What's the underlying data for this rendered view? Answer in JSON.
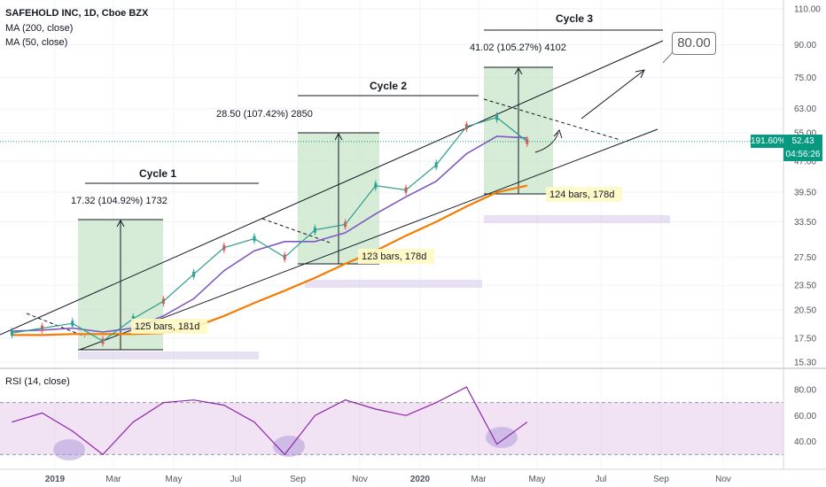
{
  "header": {
    "symbol": "SAFEHOLD INC, 1D, Cboe BZX",
    "ma200": "MA (200, close)",
    "ma50": "MA (50, close)"
  },
  "price_labels": {
    "price_tag": "52.43",
    "pct_tag": "191.60%",
    "timer_tag": "04:56:26"
  },
  "callout": "80.00",
  "colors": {
    "price_up": "#26a69a",
    "price_down": "#ef5350",
    "ma200": "#f57c00",
    "ma50": "#7e57c2",
    "rsi_line": "#8e24aa",
    "rsi_band": "#e1bee7",
    "zone_green": "#c8e6c9",
    "last_price": "#089981"
  },
  "chart_data": [
    {
      "type": "line",
      "title": "SAFEHOLD INC, 1D, Cboe BZX",
      "y_axis": {
        "scale": "log",
        "ticks": [
          "110.00",
          "90.00",
          "75.00",
          "63.00",
          "55.00",
          "47.00",
          "39.50",
          "33.50",
          "27.50",
          "23.50",
          "20.50",
          "17.50",
          "15.30"
        ]
      },
      "x_axis": {
        "ticks": [
          "2019",
          "Mar",
          "May",
          "Jul",
          "Sep",
          "Nov",
          "2020",
          "Mar",
          "May",
          "Jul",
          "Sep",
          "Nov"
        ]
      },
      "x": [
        "2018-11",
        "2018-12",
        "2019-01",
        "2019-02",
        "2019-03",
        "2019-04",
        "2019-05",
        "2019-06",
        "2019-07",
        "2019-08",
        "2019-09",
        "2019-10",
        "2019-11",
        "2019-12",
        "2020-01",
        "2020-02",
        "2020-03",
        "2020-04"
      ],
      "series": [
        {
          "name": "Price",
          "values": [
            18.0,
            18.5,
            19.0,
            17.2,
            19.5,
            21.5,
            25.0,
            29.0,
            30.5,
            27.5,
            32.0,
            33.0,
            41.0,
            40.0,
            46.0,
            57.0,
            60.0,
            52.43
          ]
        },
        {
          "name": "MA (50, close)",
          "values": [
            18.2,
            18.3,
            18.5,
            18.1,
            18.5,
            19.8,
            21.8,
            25.5,
            28.5,
            30.0,
            30.0,
            31.5,
            35.0,
            38.5,
            42.0,
            49.0,
            54.0,
            53.5
          ]
        },
        {
          "name": "MA (200, close)",
          "values": [
            17.8,
            17.8,
            17.9,
            17.9,
            17.9,
            18.0,
            18.6,
            19.8,
            21.3,
            22.8,
            24.5,
            26.5,
            28.5,
            31.0,
            33.5,
            36.5,
            39.5,
            41.0
          ]
        }
      ],
      "annotations": {
        "cycles": [
          {
            "label": "Cycle 1",
            "measure": "17.32 (104.92%) 1732",
            "bars": "125 bars, 181d"
          },
          {
            "label": "Cycle 2",
            "measure": "28.50 (107.42%) 2850",
            "bars": "123 bars, 178d"
          },
          {
            "label": "Cycle 3",
            "measure": "41.02 (105.27%) 4102",
            "bars": "124 bars, 178d"
          }
        ],
        "target": "80.00"
      }
    },
    {
      "type": "line",
      "title": "RSI (14, close)",
      "y_axis": {
        "ticks": [
          "80.00",
          "60.00",
          "40.00"
        ],
        "band": [
          30,
          70
        ]
      },
      "series": [
        {
          "name": "RSI",
          "values": [
            55,
            62,
            48,
            30,
            55,
            70,
            72,
            68,
            55,
            30,
            60,
            72,
            65,
            60,
            70,
            82,
            38,
            55
          ]
        }
      ]
    }
  ]
}
